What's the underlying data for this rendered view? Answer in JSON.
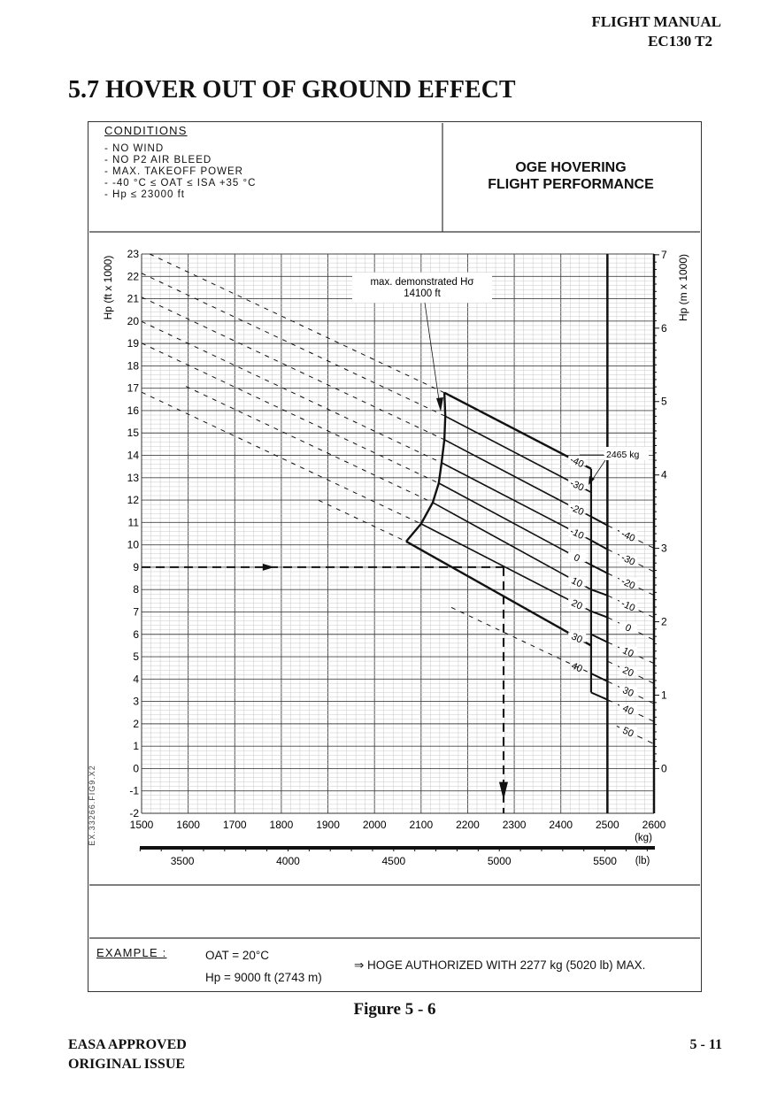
{
  "header": {
    "manual": "FLIGHT MANUAL",
    "model": "EC130 T2"
  },
  "page_title": "5.7 HOVER OUT OF GROUND EFFECT",
  "conditions": {
    "heading": "CONDITIONS",
    "items": [
      "- NO WIND",
      "- NO P2 AIR BLEED",
      "- MAX. TAKEOFF POWER",
      "- -40 °C ≤ OAT ≤ ISA +35 °C",
      "- Hp ≤ 23000 ft"
    ]
  },
  "chart_heading": [
    "OGE HOVERING",
    "FLIGHT PERFORMANCE"
  ],
  "chart_data": {
    "type": "line",
    "xlabel": "(kg)",
    "x2label": "(lb)",
    "ylabel": "Hp (ft x 1000)",
    "y2label": "Hp (m x 1000)",
    "xlim": [
      1500,
      2600
    ],
    "ylim": [
      -2,
      23
    ],
    "x_ticks": [
      1500,
      1600,
      1700,
      1800,
      1900,
      2000,
      2100,
      2200,
      2300,
      2400,
      2500,
      2600
    ],
    "y_ticks": [
      -2,
      -1,
      0,
      1,
      2,
      3,
      4,
      5,
      6,
      7,
      8,
      9,
      10,
      11,
      12,
      13,
      14,
      15,
      16,
      17,
      18,
      19,
      20,
      21,
      22,
      23
    ],
    "lb_ticks": [
      3500,
      4000,
      4500,
      5000,
      5500
    ],
    "m_ticks": [
      0,
      1,
      2,
      3,
      4,
      5,
      6,
      7
    ],
    "grid": true,
    "figure_code": "EX.33266.FIG9.X2",
    "max_weight_line_kg": 2500,
    "limit_weight": {
      "kg": 2465,
      "label": "2465 kg"
    },
    "max_demonstrated": {
      "label": "max. demonstrated Hσ",
      "value": "14100 ft"
    },
    "oat_lines": [
      {
        "label": "-40",
        "points": [
          [
            2150,
            16.8
          ],
          [
            2465,
            13.4
          ]
        ]
      },
      {
        "label": "-30",
        "points": [
          [
            2152,
            15.75
          ],
          [
            2465,
            12.35
          ]
        ]
      },
      {
        "label": "-20",
        "points": [
          [
            2150,
            14.7
          ],
          [
            2465,
            11.26
          ]
        ]
      },
      {
        "label": "-10",
        "points": [
          [
            2144,
            13.67
          ],
          [
            2465,
            10.2
          ]
        ]
      },
      {
        "label": "0",
        "points": [
          [
            2138,
            12.76
          ],
          [
            2465,
            9.1
          ]
        ]
      },
      {
        "label": "10",
        "points": [
          [
            2125,
            11.89
          ],
          [
            2465,
            8.0
          ]
        ]
      },
      {
        "label": "20",
        "points": [
          [
            2100,
            10.94
          ],
          [
            2465,
            7.03
          ]
        ]
      },
      {
        "label": "30",
        "points": [
          [
            2068,
            10.15
          ],
          [
            2465,
            5.5
          ]
        ]
      }
    ],
    "oat_dashed_below": {
      "label": "40",
      "points": [
        [
          2165,
          7.2
        ],
        [
          2465,
          4.25
        ]
      ]
    },
    "dashed_extension_start_kg": {
      "10": 1595,
      "30": 1880
    },
    "left_boundary": [
      [
        2150,
        16.8
      ],
      [
        2152,
        15.75
      ],
      [
        2150,
        14.7
      ],
      [
        2144,
        13.67
      ],
      [
        2138,
        12.76
      ],
      [
        2125,
        11.89
      ],
      [
        2100,
        10.94
      ],
      [
        2068,
        10.15
      ]
    ],
    "limit_vertical": [
      [
        2465,
        13.4
      ],
      [
        2465,
        3.4
      ]
    ],
    "step_segments": [
      [
        [
          2465,
          11.26
        ],
        [
          2500,
          10.87
        ]
      ],
      [
        [
          2465,
          10.2
        ],
        [
          2500,
          9.8
        ]
      ],
      [
        [
          2465,
          9.1
        ],
        [
          2500,
          8.73
        ]
      ],
      [
        [
          2465,
          8.0
        ],
        [
          2500,
          7.74
        ]
      ],
      [
        [
          2465,
          7.03
        ],
        [
          2500,
          6.76
        ]
      ],
      [
        [
          2465,
          6.0
        ],
        [
          2500,
          5.65
        ]
      ],
      [
        [
          2465,
          4.25
        ],
        [
          2500,
          3.9
        ]
      ],
      [
        [
          2465,
          3.4
        ],
        [
          2500,
          3.08
        ]
      ]
    ],
    "isa_lines_right": [
      {
        "label": "-40",
        "points": [
          [
            2500,
            10.87
          ],
          [
            2600,
            9.85
          ]
        ]
      },
      {
        "label": "-30",
        "points": [
          [
            2500,
            9.8
          ],
          [
            2600,
            8.8
          ]
        ]
      },
      {
        "label": "-20",
        "points": [
          [
            2500,
            8.73
          ],
          [
            2600,
            7.75
          ]
        ]
      },
      {
        "label": "-10",
        "points": [
          [
            2500,
            7.74
          ],
          [
            2600,
            6.75
          ]
        ]
      },
      {
        "label": "0",
        "points": [
          [
            2500,
            6.76
          ],
          [
            2600,
            5.75
          ]
        ]
      },
      {
        "label": "10",
        "points": [
          [
            2500,
            5.65
          ],
          [
            2600,
            4.7
          ]
        ]
      },
      {
        "label": "20",
        "points": [
          [
            2500,
            4.8
          ],
          [
            2600,
            3.8
          ]
        ]
      },
      {
        "label": "30",
        "points": [
          [
            2500,
            3.9
          ],
          [
            2600,
            2.9
          ]
        ]
      },
      {
        "label": "40",
        "points": [
          [
            2500,
            3.08
          ],
          [
            2600,
            2.1
          ]
        ]
      },
      {
        "label": "50",
        "points": [
          [
            2520,
            1.9
          ],
          [
            2600,
            1.1
          ]
        ]
      }
    ],
    "example_path": {
      "hp_ft_x1000": 9,
      "weight_kg": 2277
    }
  },
  "example": {
    "heading": "EXAMPLE :",
    "oat": "OAT = 20°C",
    "hp": "Hp = 9000 ft (2743 m)",
    "result": "⇒  HOGE AUTHORIZED WITH 2277 kg (5020 lb) MAX."
  },
  "figure_caption": "Figure 5 - 6",
  "footer": {
    "approval": "EASA APPROVED",
    "issue": "ORIGINAL ISSUE",
    "page": "5 - 11"
  }
}
